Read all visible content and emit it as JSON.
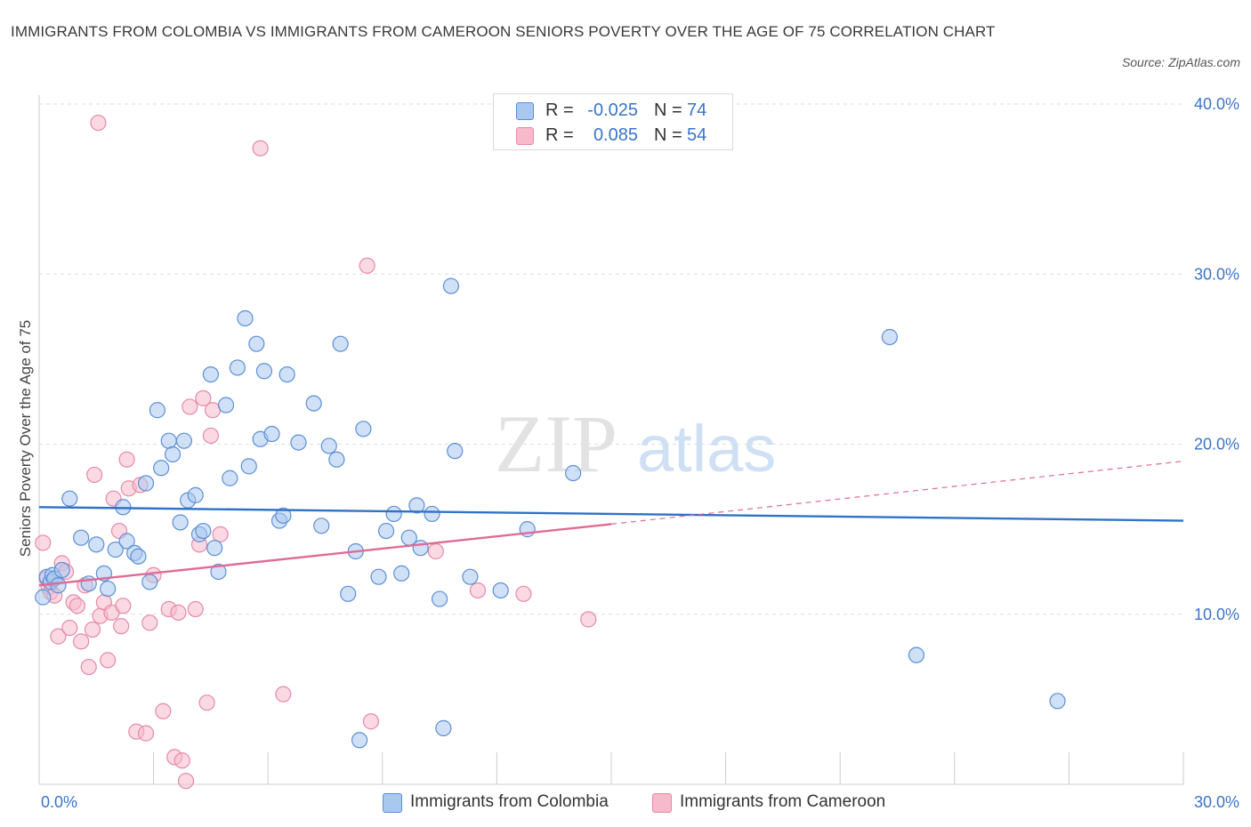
{
  "title": "IMMIGRANTS FROM COLOMBIA VS IMMIGRANTS FROM CAMEROON SENIORS POVERTY OVER THE AGE OF 75 CORRELATION CHART",
  "source": "Source: ZipAtlas.com",
  "watermark": {
    "zip": "ZIP",
    "atlas": "atlas"
  },
  "legend_top": {
    "rows": [
      {
        "r_label": "R =",
        "r_value": "-0.025",
        "n_label": "N =",
        "n_value": "74",
        "color": "#a9c8f0"
      },
      {
        "r_label": "R =",
        "r_value": "0.085",
        "n_label": "N =",
        "n_value": "54",
        "color": "#f7b9cc"
      }
    ]
  },
  "colors": {
    "colombia_fill": "#a9c8f0",
    "colombia_stroke": "#5b8fd6",
    "colombia_line": "#2f72c8",
    "cameroon_fill": "#f7b9cc",
    "cameroon_stroke": "#e58aa8",
    "cameroon_line": "#e06a95",
    "tick_label": "#3a74c9",
    "grid": "#dddddd"
  },
  "chart_data": {
    "type": "scatter",
    "title": "IMMIGRANTS FROM COLOMBIA VS IMMIGRANTS FROM CAMEROON SENIORS POVERTY OVER THE AGE OF 75 CORRELATION CHART",
    "xlabel": "",
    "ylabel": "Seniors Poverty Over the Age of 75",
    "xlim": [
      0,
      30
    ],
    "ylim": [
      0,
      40
    ],
    "x_tick_labels": [
      "0.0%",
      "30.0%"
    ],
    "y_ticks": [
      10,
      20,
      30,
      40
    ],
    "y_tick_labels": [
      "10.0%",
      "20.0%",
      "30.0%",
      "40.0%"
    ],
    "grid": true,
    "legend_position": "top-center",
    "series": [
      {
        "name": "Immigrants from Colombia",
        "points": [
          [
            0.1,
            11.0
          ],
          [
            0.2,
            12.2
          ],
          [
            0.3,
            11.9
          ],
          [
            0.35,
            12.3
          ],
          [
            0.4,
            12.1
          ],
          [
            0.5,
            11.7
          ],
          [
            0.6,
            12.6
          ],
          [
            0.8,
            16.8
          ],
          [
            1.1,
            14.5
          ],
          [
            1.3,
            11.8
          ],
          [
            1.5,
            14.1
          ],
          [
            1.7,
            12.4
          ],
          [
            1.8,
            11.5
          ],
          [
            2.0,
            13.8
          ],
          [
            2.2,
            16.3
          ],
          [
            2.3,
            14.3
          ],
          [
            2.5,
            13.6
          ],
          [
            2.6,
            13.4
          ],
          [
            2.8,
            17.7
          ],
          [
            2.9,
            11.9
          ],
          [
            3.1,
            22.0
          ],
          [
            3.2,
            18.6
          ],
          [
            3.4,
            20.2
          ],
          [
            3.5,
            19.4
          ],
          [
            3.7,
            15.4
          ],
          [
            3.8,
            20.2
          ],
          [
            3.9,
            16.7
          ],
          [
            4.1,
            17.0
          ],
          [
            4.2,
            14.7
          ],
          [
            4.3,
            14.9
          ],
          [
            4.5,
            24.1
          ],
          [
            4.6,
            13.9
          ],
          [
            4.7,
            12.5
          ],
          [
            4.9,
            22.3
          ],
          [
            5.0,
            18.0
          ],
          [
            5.2,
            24.5
          ],
          [
            5.4,
            27.4
          ],
          [
            5.5,
            18.7
          ],
          [
            5.7,
            25.9
          ],
          [
            5.8,
            20.3
          ],
          [
            5.9,
            24.3
          ],
          [
            6.1,
            20.6
          ],
          [
            6.3,
            15.5
          ],
          [
            6.4,
            15.8
          ],
          [
            6.5,
            24.1
          ],
          [
            6.8,
            20.1
          ],
          [
            7.2,
            22.4
          ],
          [
            7.4,
            15.2
          ],
          [
            7.6,
            19.9
          ],
          [
            7.8,
            19.1
          ],
          [
            7.9,
            25.9
          ],
          [
            8.1,
            11.2
          ],
          [
            8.3,
            13.7
          ],
          [
            8.5,
            20.9
          ],
          [
            8.4,
            2.6
          ],
          [
            8.9,
            12.2
          ],
          [
            9.1,
            14.9
          ],
          [
            9.3,
            15.9
          ],
          [
            9.5,
            12.4
          ],
          [
            9.7,
            14.5
          ],
          [
            9.9,
            16.4
          ],
          [
            10.0,
            13.9
          ],
          [
            10.3,
            15.9
          ],
          [
            10.5,
            10.9
          ],
          [
            10.6,
            3.3
          ],
          [
            10.8,
            29.3
          ],
          [
            10.9,
            19.6
          ],
          [
            11.3,
            12.2
          ],
          [
            12.1,
            11.4
          ],
          [
            12.8,
            15.0
          ],
          [
            14.0,
            18.3
          ],
          [
            22.3,
            26.3
          ],
          [
            23.0,
            7.6
          ],
          [
            26.7,
            4.9
          ]
        ]
      },
      {
        "name": "Immigrants from Cameroon",
        "points": [
          [
            0.1,
            14.2
          ],
          [
            0.2,
            12.1
          ],
          [
            0.25,
            11.6
          ],
          [
            0.3,
            11.3
          ],
          [
            0.4,
            11.1
          ],
          [
            0.5,
            8.7
          ],
          [
            0.6,
            13.0
          ],
          [
            0.7,
            12.5
          ],
          [
            0.8,
            9.2
          ],
          [
            0.9,
            10.7
          ],
          [
            1.0,
            10.5
          ],
          [
            1.1,
            8.4
          ],
          [
            1.2,
            11.7
          ],
          [
            1.3,
            6.9
          ],
          [
            1.4,
            9.1
          ],
          [
            1.45,
            18.2
          ],
          [
            1.6,
            9.9
          ],
          [
            1.7,
            10.7
          ],
          [
            1.8,
            7.3
          ],
          [
            1.9,
            10.1
          ],
          [
            1.95,
            16.8
          ],
          [
            2.1,
            14.9
          ],
          [
            2.15,
            9.3
          ],
          [
            2.2,
            10.5
          ],
          [
            2.3,
            19.1
          ],
          [
            2.35,
            17.4
          ],
          [
            2.55,
            3.1
          ],
          [
            2.65,
            17.6
          ],
          [
            2.8,
            3.0
          ],
          [
            2.9,
            9.5
          ],
          [
            3.0,
            12.3
          ],
          [
            3.25,
            4.3
          ],
          [
            3.4,
            10.3
          ],
          [
            3.55,
            1.6
          ],
          [
            3.65,
            10.1
          ],
          [
            3.75,
            1.4
          ],
          [
            3.85,
            0.2
          ],
          [
            3.95,
            22.2
          ],
          [
            4.1,
            10.3
          ],
          [
            4.2,
            14.1
          ],
          [
            4.3,
            22.7
          ],
          [
            4.4,
            4.8
          ],
          [
            4.5,
            20.5
          ],
          [
            4.55,
            22.0
          ],
          [
            4.75,
            14.7
          ],
          [
            1.55,
            38.9
          ],
          [
            5.8,
            37.4
          ],
          [
            6.4,
            5.3
          ],
          [
            8.6,
            30.5
          ],
          [
            8.7,
            3.7
          ],
          [
            10.4,
            13.7
          ],
          [
            11.5,
            11.4
          ],
          [
            12.7,
            11.2
          ],
          [
            14.4,
            9.7
          ]
        ]
      }
    ],
    "trend_lines": [
      {
        "series": "Immigrants from Colombia",
        "x": [
          0,
          30
        ],
        "y": [
          16.3,
          15.5
        ]
      },
      {
        "series": "Immigrants from Cameroon",
        "x": [
          0,
          15
        ],
        "y": [
          11.7,
          15.3
        ]
      },
      {
        "series": "Immigrants from Cameroon",
        "x": [
          15,
          30
        ],
        "y": [
          15.3,
          19.0
        ],
        "style": "dashed"
      }
    ]
  },
  "legend_bottom": [
    {
      "label": "Immigrants from Colombia",
      "color": "#a9c8f0"
    },
    {
      "label": "Immigrants from Cameroon",
      "color": "#f7b9cc"
    }
  ]
}
